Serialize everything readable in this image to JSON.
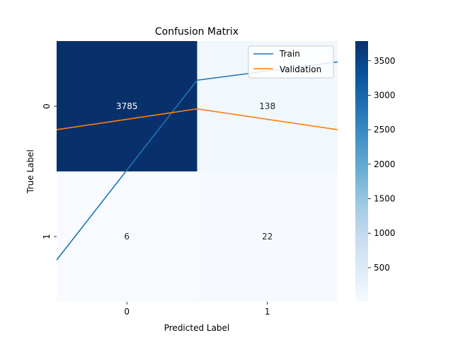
{
  "chart_data": {
    "type": "heatmap",
    "title": "Confusion Matrix",
    "xlabel": "Predicted Label",
    "ylabel": "True Label",
    "x_categories": [
      "0",
      "1"
    ],
    "y_categories": [
      "0",
      "1"
    ],
    "matrix": [
      [
        3785,
        138
      ],
      [
        6,
        22
      ]
    ],
    "colormap": "Blues",
    "color_range": [
      6,
      3785
    ],
    "colorbar_ticks": [
      500,
      1000,
      1500,
      2000,
      2500,
      3000,
      3500
    ],
    "overlay_lines": {
      "x": [
        -0.5,
        0.5,
        1.5
      ],
      "legend_position": "top-right",
      "series": [
        {
          "name": "Train",
          "color": "#1f77b4",
          "values": [
            0.16,
            0.85,
            0.92
          ]
        },
        {
          "name": "Validation",
          "color": "#ff7f0e",
          "values": [
            0.66,
            0.74,
            0.66
          ]
        }
      ]
    }
  }
}
